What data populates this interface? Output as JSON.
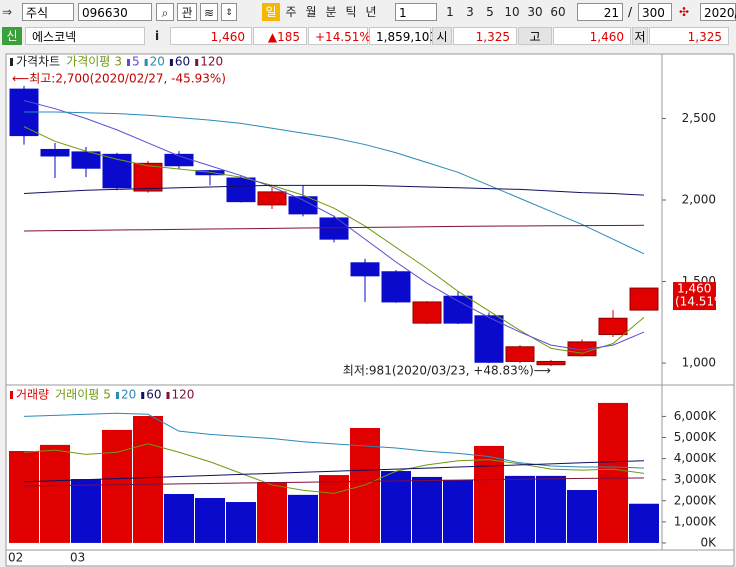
{
  "toolbar": {
    "market": "주식",
    "code": "096630",
    "watch": "관",
    "periods": [
      "일",
      "주",
      "월",
      "분",
      "틱",
      "년"
    ],
    "unit": "1",
    "intervals": [
      "1",
      "3",
      "5",
      "10",
      "30",
      "60"
    ],
    "count": "21",
    "separator": "/",
    "max_count": "300",
    "date": "2020/"
  },
  "quote_bar": {
    "badge": "신",
    "name": "에스코넥",
    "info": "i",
    "price": "1,460",
    "change": "▲185",
    "change_rate": "+14.51%",
    "volume": "1,859,103",
    "open_label": "시",
    "open": "1,325",
    "high_label": "고",
    "high": "1,460",
    "low_label": "저",
    "low": "1,325"
  },
  "chart_data": [
    {
      "type": "candlestick",
      "title": "가격차트",
      "ma_title": "가격이평",
      "categories": [
        "02",
        null,
        "03",
        null,
        null,
        null,
        null,
        null,
        null,
        null,
        null,
        null,
        null,
        null,
        null,
        null,
        null,
        null,
        null,
        null,
        null
      ],
      "open": [
        2680,
        2310,
        2295,
        2280,
        2055,
        2280,
        2180,
        2135,
        1970,
        2020,
        1890,
        1615,
        1560,
        1245,
        1410,
        1290,
        1010,
        990,
        1045,
        1175,
        1325
      ],
      "high": [
        2700,
        2350,
        2325,
        2290,
        2240,
        2300,
        2185,
        2150,
        2075,
        2090,
        1905,
        1640,
        1570,
        1380,
        1440,
        1310,
        1110,
        1020,
        1145,
        1325,
        1460
      ],
      "low": [
        2340,
        2135,
        2140,
        2060,
        2045,
        2190,
        2090,
        1985,
        1945,
        1900,
        1740,
        1375,
        1370,
        1240,
        1240,
        1000,
        1000,
        981,
        1040,
        1160,
        1325
      ],
      "close": [
        2395,
        2270,
        2195,
        2075,
        2225,
        2210,
        2155,
        1990,
        2050,
        1915,
        1760,
        1535,
        1375,
        1375,
        1245,
        1005,
        1100,
        1010,
        1130,
        1275,
        1460
      ],
      "up_color": "#e00000",
      "down_color": "#0a0acc",
      "series": [
        {
          "name": "3",
          "color": "#6f9a10",
          "values": [
            2450,
            2360,
            2300,
            2250,
            2210,
            2190,
            2170,
            2140,
            2090,
            2030,
            1950,
            1840,
            1710,
            1580,
            1440,
            1320,
            1200,
            1090,
            1060,
            1120,
            1280
          ]
        },
        {
          "name": "5",
          "color": "#5a4fd0",
          "values": [
            2610,
            2560,
            2500,
            2430,
            2350,
            2270,
            2210,
            2150,
            2080,
            2000,
            1900,
            1760,
            1620,
            1490,
            1380,
            1280,
            1190,
            1110,
            1080,
            1110,
            1190
          ]
        },
        {
          "name": "20",
          "color": "#2a8ab8",
          "values": [
            2540,
            2540,
            2535,
            2530,
            2520,
            2505,
            2490,
            2470,
            2440,
            2410,
            2380,
            2340,
            2290,
            2230,
            2170,
            2090,
            2010,
            1930,
            1850,
            1760,
            1670
          ]
        },
        {
          "name": "60",
          "color": "#101060",
          "values": [
            2040,
            2050,
            2060,
            2065,
            2070,
            2075,
            2080,
            2085,
            2090,
            2090,
            2090,
            2090,
            2085,
            2080,
            2075,
            2070,
            2065,
            2055,
            2045,
            2040,
            2030
          ]
        },
        {
          "name": "120",
          "color": "#80103a",
          "values": [
            1810,
            1812,
            1814,
            1816,
            1818,
            1820,
            1822,
            1824,
            1826,
            1828,
            1830,
            1832,
            1834,
            1836,
            1838,
            1840,
            1841,
            1842,
            1843,
            1844,
            1845
          ]
        }
      ],
      "ylim": [
        884,
        2877
      ],
      "yticks": [
        {
          "value": 1000,
          "label": "1,000"
        },
        {
          "value": 1500,
          "label": "1,500"
        },
        {
          "value": 2000,
          "label": "2,000"
        },
        {
          "value": 2500,
          "label": "2,500"
        }
      ],
      "annotations": [
        {
          "text": "⟵최고:2,700(2020/02/27, -45.93%)",
          "color": "#c00000"
        },
        {
          "text": "최저:981(2020/03/23, +48.83%)⟶",
          "color": "#222222"
        }
      ],
      "price_tag": {
        "value": 1460,
        "label": "1,460",
        "change": "(14.51%)",
        "color": "#e00000"
      }
    },
    {
      "type": "bar",
      "title": "거래량",
      "title_color": "#e00000",
      "ma_title": "거래이평",
      "values": [
        4360000,
        4650000,
        3030000,
        5360000,
        6020000,
        2320000,
        2130000,
        1940000,
        2890000,
        2280000,
        3220000,
        5450000,
        3410000,
        3130000,
        2990000,
        4600000,
        3180000,
        3180000,
        2510000,
        6640000,
        1859103
      ],
      "colors": [
        "#e00000",
        "#e00000",
        "#0a0acc",
        "#e00000",
        "#e00000",
        "#0a0acc",
        "#0a0acc",
        "#0a0acc",
        "#e00000",
        "#0a0acc",
        "#e00000",
        "#e00000",
        "#0a0acc",
        "#0a0acc",
        "#0a0acc",
        "#e00000",
        "#0a0acc",
        "#0a0acc",
        "#0a0acc",
        "#e00000",
        "#0a0acc"
      ],
      "series": [
        {
          "name": "5",
          "color": "#6f9a10",
          "values": [
            4300000,
            4400000,
            4200000,
            4300000,
            4700000,
            4300000,
            3850000,
            3300000,
            2750000,
            2500000,
            2350000,
            2750000,
            3400000,
            3700000,
            3900000,
            3950000,
            3750000,
            3500000,
            3450000,
            3500000,
            3300000
          ]
        },
        {
          "name": "20",
          "color": "#2a8ab8",
          "values": [
            6000000,
            6050000,
            6100000,
            6150000,
            6100000,
            5300000,
            5150000,
            5050000,
            4950000,
            4800000,
            4700000,
            4600000,
            4500000,
            4350000,
            4250000,
            4100000,
            3800000,
            3650000,
            3600000,
            3600000,
            3550000
          ]
        },
        {
          "name": "60",
          "color": "#101060",
          "values": [
            2900000,
            2950000,
            3000000,
            3050000,
            3100000,
            3150000,
            3200000,
            3250000,
            3300000,
            3350000,
            3400000,
            3450000,
            3500000,
            3550000,
            3600000,
            3650000,
            3700000,
            3750000,
            3800000,
            3850000,
            3900000
          ]
        },
        {
          "name": "120",
          "color": "#80103a",
          "values": [
            2700000,
            2720000,
            2740000,
            2760000,
            2780000,
            2800000,
            2820000,
            2840000,
            2860000,
            2880000,
            2900000,
            2920000,
            2940000,
            2960000,
            2980000,
            3000000,
            3020000,
            3040000,
            3060000,
            3070000,
            3080000
          ]
        }
      ],
      "ylim": [
        -240000,
        7300000
      ],
      "yticks": [
        {
          "value": 0,
          "label": "0K"
        },
        {
          "value": 1000000,
          "label": "1,000K"
        },
        {
          "value": 2000000,
          "label": "2,000K"
        },
        {
          "value": 3000000,
          "label": "3,000K"
        },
        {
          "value": 4000000,
          "label": "4,000K"
        },
        {
          "value": 5000000,
          "label": "5,000K"
        },
        {
          "value": 6000000,
          "label": "6,000K"
        }
      ]
    }
  ]
}
